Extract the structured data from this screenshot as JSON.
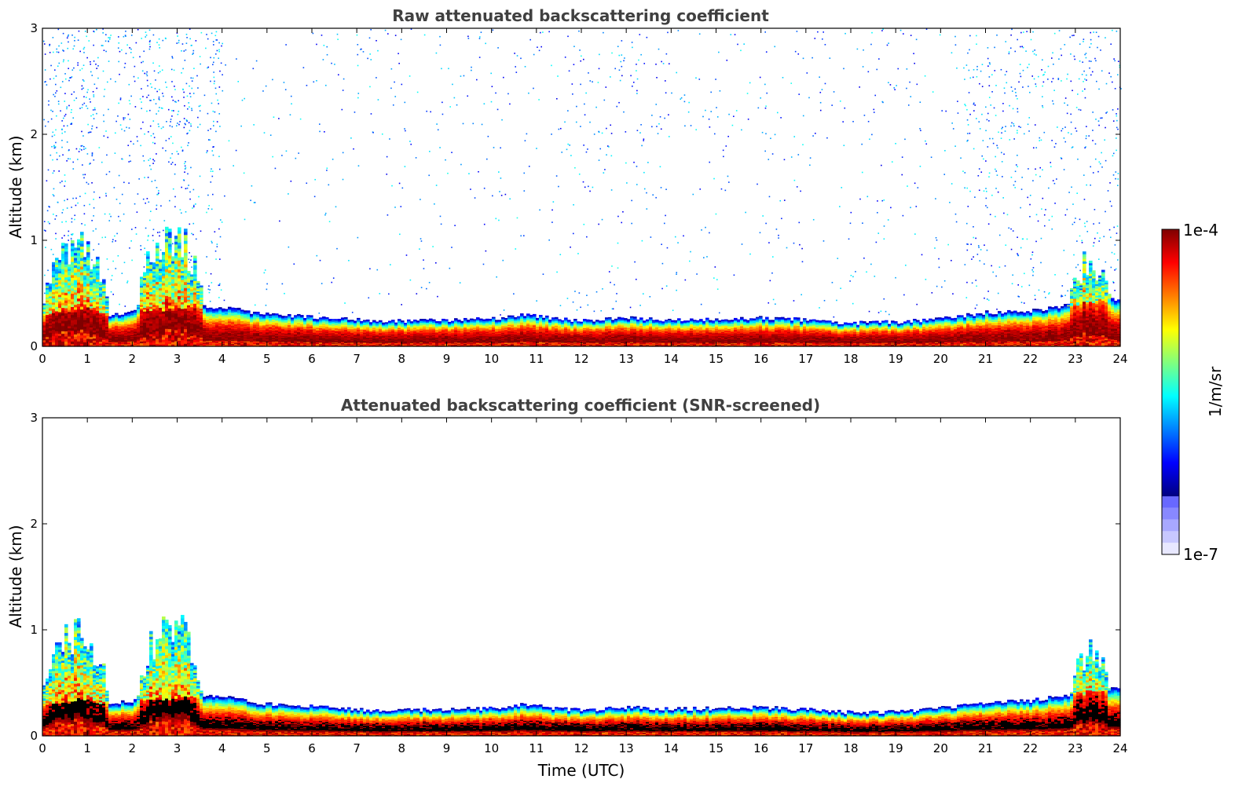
{
  "colors": {
    "jet": [
      "#00007f",
      "#0000ff",
      "#007fff",
      "#00ffff",
      "#7fff7f",
      "#ffff00",
      "#ff7f00",
      "#ff0000",
      "#7f0000"
    ],
    "low_bins": [
      "#e8e8ff",
      "#c8c8ff",
      "#a8a8ff",
      "#8888ff",
      "#6868ff"
    ],
    "black_layer": "#000000",
    "title_color": "#404040"
  },
  "colorbar": {
    "max_label": "1e-4",
    "min_label": "1e-7",
    "unit": "1/m/sr",
    "vmin": 1e-07,
    "vmax": 0.0001,
    "scale": "log"
  },
  "chart_data": [
    {
      "type": "heatmap",
      "title": "Raw attenuated backscattering coefficient",
      "xlabel": "",
      "ylabel": "Altitude (km)",
      "xlim": [
        0,
        24
      ],
      "ylim": [
        0,
        3
      ],
      "xticks": [
        "0",
        "1",
        "2",
        "3",
        "4",
        "5",
        "6",
        "7",
        "8",
        "9",
        "10",
        "11",
        "12",
        "13",
        "14",
        "15",
        "16",
        "17",
        "18",
        "19",
        "20",
        "21",
        "22",
        "23",
        "24"
      ],
      "yticks": [
        "0",
        "1",
        "2",
        "3"
      ],
      "noise": true,
      "black_core": false,
      "boundary_layer_top_km": [
        [
          0,
          0.3
        ],
        [
          1,
          0.35
        ],
        [
          1.5,
          0.3
        ],
        [
          2,
          0.33
        ],
        [
          3,
          0.35
        ],
        [
          3.5,
          0.38
        ],
        [
          4,
          0.37
        ],
        [
          5,
          0.3
        ],
        [
          6,
          0.28
        ],
        [
          7,
          0.25
        ],
        [
          8,
          0.24
        ],
        [
          9,
          0.25
        ],
        [
          10,
          0.26
        ],
        [
          10.8,
          0.3
        ],
        [
          11,
          0.28
        ],
        [
          12,
          0.24
        ],
        [
          13,
          0.27
        ],
        [
          14,
          0.25
        ],
        [
          15,
          0.26
        ],
        [
          16,
          0.27
        ],
        [
          17,
          0.25
        ],
        [
          18,
          0.22
        ],
        [
          19,
          0.23
        ],
        [
          20,
          0.26
        ],
        [
          21,
          0.32
        ],
        [
          22,
          0.33
        ],
        [
          22.4,
          0.36
        ],
        [
          23,
          0.4
        ],
        [
          24,
          0.45
        ]
      ],
      "aerosol_plumes": [
        {
          "t0": 0.0,
          "t1": 1.5,
          "top_km": 1.1
        },
        {
          "t0": 2.1,
          "t1": 3.6,
          "top_km": 1.2
        },
        {
          "t0": 22.8,
          "t1": 23.9,
          "top_km": 0.9
        }
      ],
      "vmin": 1e-07,
      "vmax": 0.0001
    },
    {
      "type": "heatmap",
      "title": "Attenuated backscattering coefficient (SNR-screened)",
      "xlabel": "Time (UTC)",
      "ylabel": "Altitude (km)",
      "xlim": [
        0,
        24
      ],
      "ylim": [
        0,
        3
      ],
      "xticks": [
        "0",
        "1",
        "2",
        "3",
        "4",
        "5",
        "6",
        "7",
        "8",
        "9",
        "10",
        "11",
        "12",
        "13",
        "14",
        "15",
        "16",
        "17",
        "18",
        "19",
        "20",
        "21",
        "22",
        "23",
        "24"
      ],
      "yticks": [
        "0",
        "1",
        "2",
        "3"
      ],
      "noise": false,
      "black_core": true,
      "boundary_layer_top_km": [
        [
          0,
          0.3
        ],
        [
          1,
          0.35
        ],
        [
          1.5,
          0.3
        ],
        [
          2,
          0.33
        ],
        [
          3,
          0.35
        ],
        [
          3.5,
          0.38
        ],
        [
          4,
          0.37
        ],
        [
          5,
          0.3
        ],
        [
          6,
          0.28
        ],
        [
          7,
          0.25
        ],
        [
          8,
          0.24
        ],
        [
          9,
          0.25
        ],
        [
          10,
          0.26
        ],
        [
          10.8,
          0.3
        ],
        [
          11,
          0.28
        ],
        [
          12,
          0.24
        ],
        [
          13,
          0.27
        ],
        [
          14,
          0.25
        ],
        [
          15,
          0.26
        ],
        [
          16,
          0.27
        ],
        [
          17,
          0.25
        ],
        [
          18,
          0.22
        ],
        [
          19,
          0.23
        ],
        [
          20,
          0.26
        ],
        [
          21,
          0.32
        ],
        [
          22,
          0.33
        ],
        [
          22.4,
          0.36
        ],
        [
          23,
          0.4
        ],
        [
          24,
          0.45
        ]
      ],
      "aerosol_plumes": [
        {
          "t0": 0.0,
          "t1": 1.5,
          "top_km": 1.1
        },
        {
          "t0": 2.1,
          "t1": 3.6,
          "top_km": 1.2
        },
        {
          "t0": 22.8,
          "t1": 23.9,
          "top_km": 0.9
        }
      ],
      "vmin": 1e-07,
      "vmax": 0.0001
    }
  ]
}
